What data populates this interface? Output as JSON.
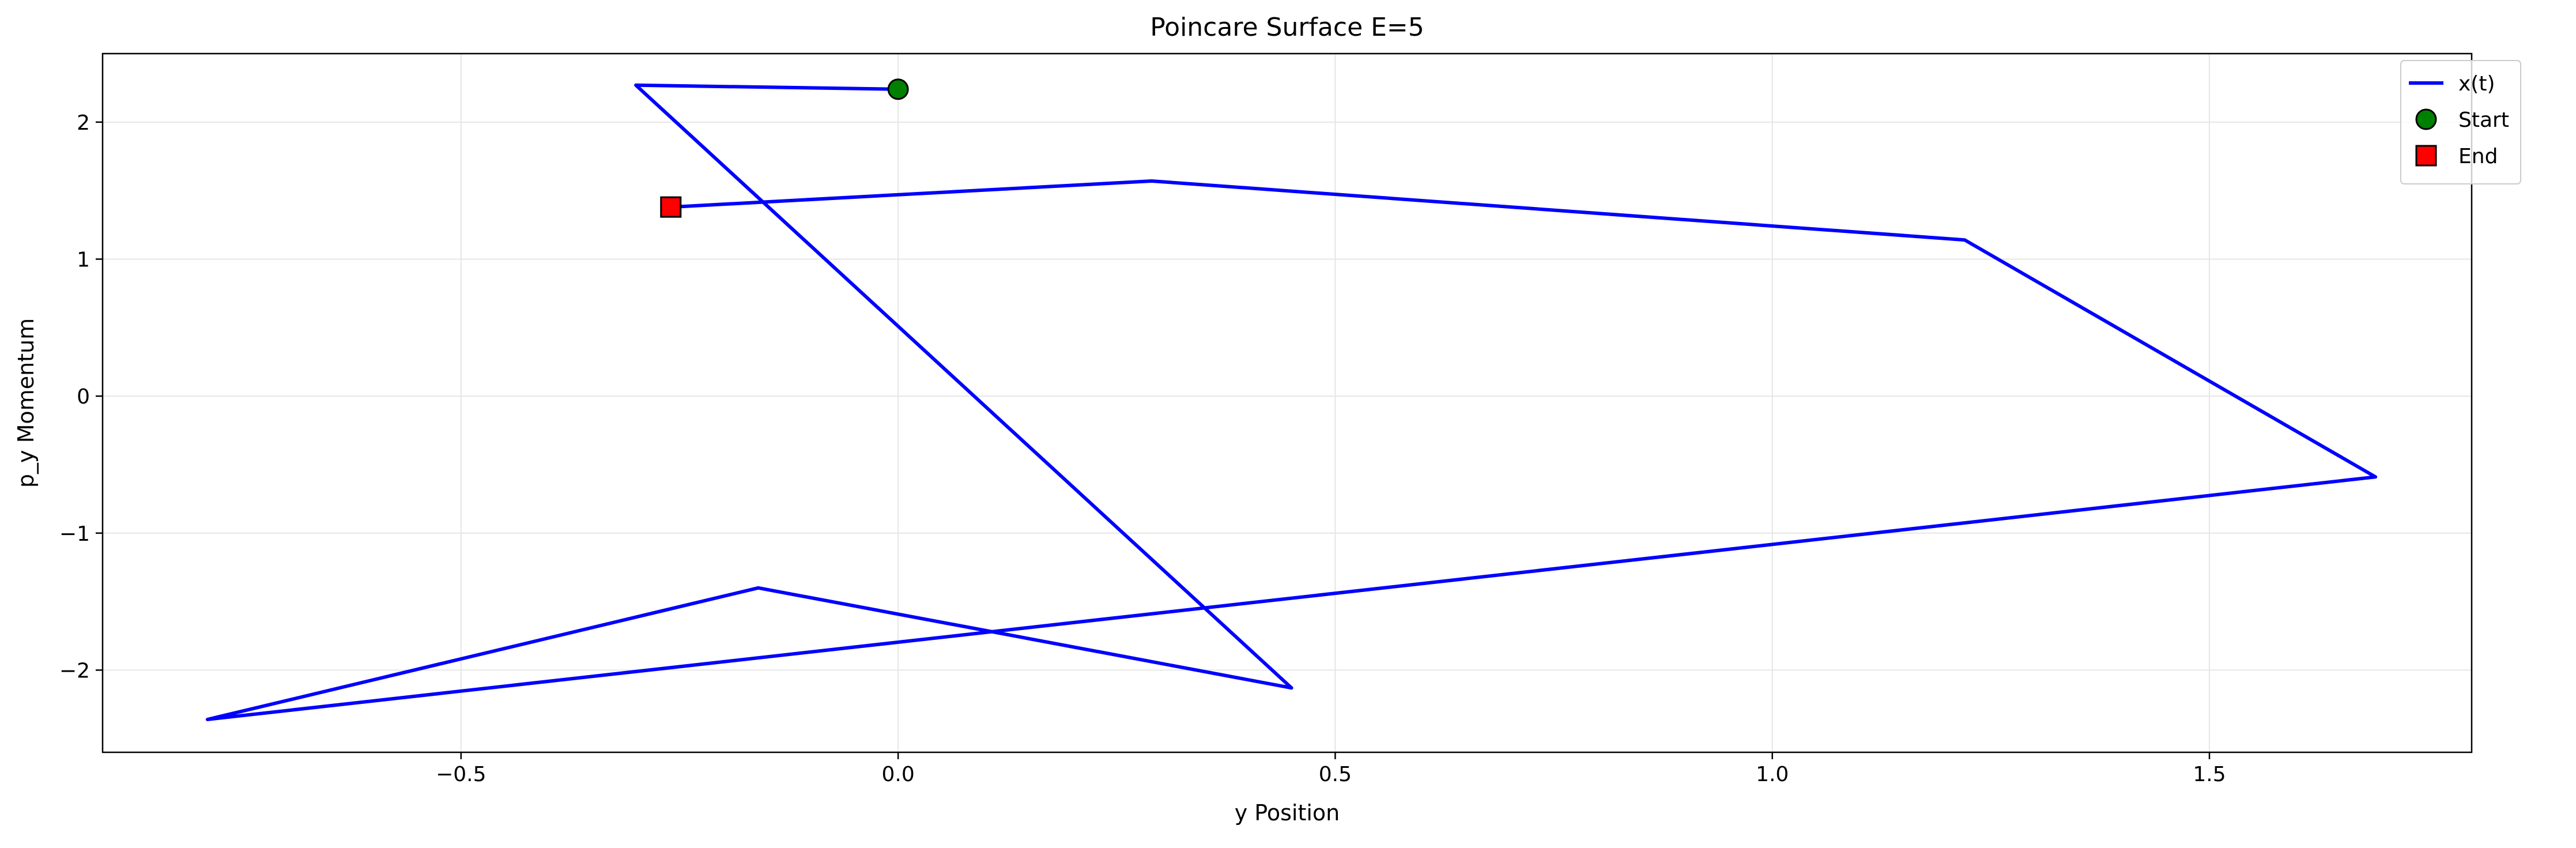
{
  "chart_data": {
    "type": "line",
    "title": "Poincare Surface E=5",
    "xlabel": "y Position",
    "ylabel": "p_y Momentum",
    "xlim": [
      -0.91,
      1.8
    ],
    "ylim": [
      -2.6,
      2.5
    ],
    "xticks": [
      -0.5,
      0.0,
      0.5,
      1.0,
      1.5
    ],
    "xtick_labels": [
      "−0.5",
      "0.0",
      "0.5",
      "1.0",
      "1.5"
    ],
    "yticks": [
      -2,
      -1,
      0,
      1,
      2
    ],
    "ytick_labels": [
      "−2",
      "−1",
      "0",
      "1",
      "2"
    ],
    "grid": true,
    "legend_position": "top-right",
    "series": [
      {
        "name": "x(t)",
        "color": "#0000ff",
        "x": [
          0.0,
          -0.3,
          0.45,
          -0.16,
          -0.79,
          1.69,
          1.22,
          0.29,
          -0.26
        ],
        "y": [
          2.24,
          2.27,
          -2.13,
          -1.4,
          -2.36,
          -0.59,
          1.14,
          1.57,
          1.38
        ]
      }
    ],
    "markers": [
      {
        "name": "Start",
        "x": 0.0,
        "y": 2.24,
        "shape": "circle",
        "color": "#008000"
      },
      {
        "name": "End",
        "x": -0.26,
        "y": 1.38,
        "shape": "square",
        "color": "#ff0000"
      }
    ]
  }
}
